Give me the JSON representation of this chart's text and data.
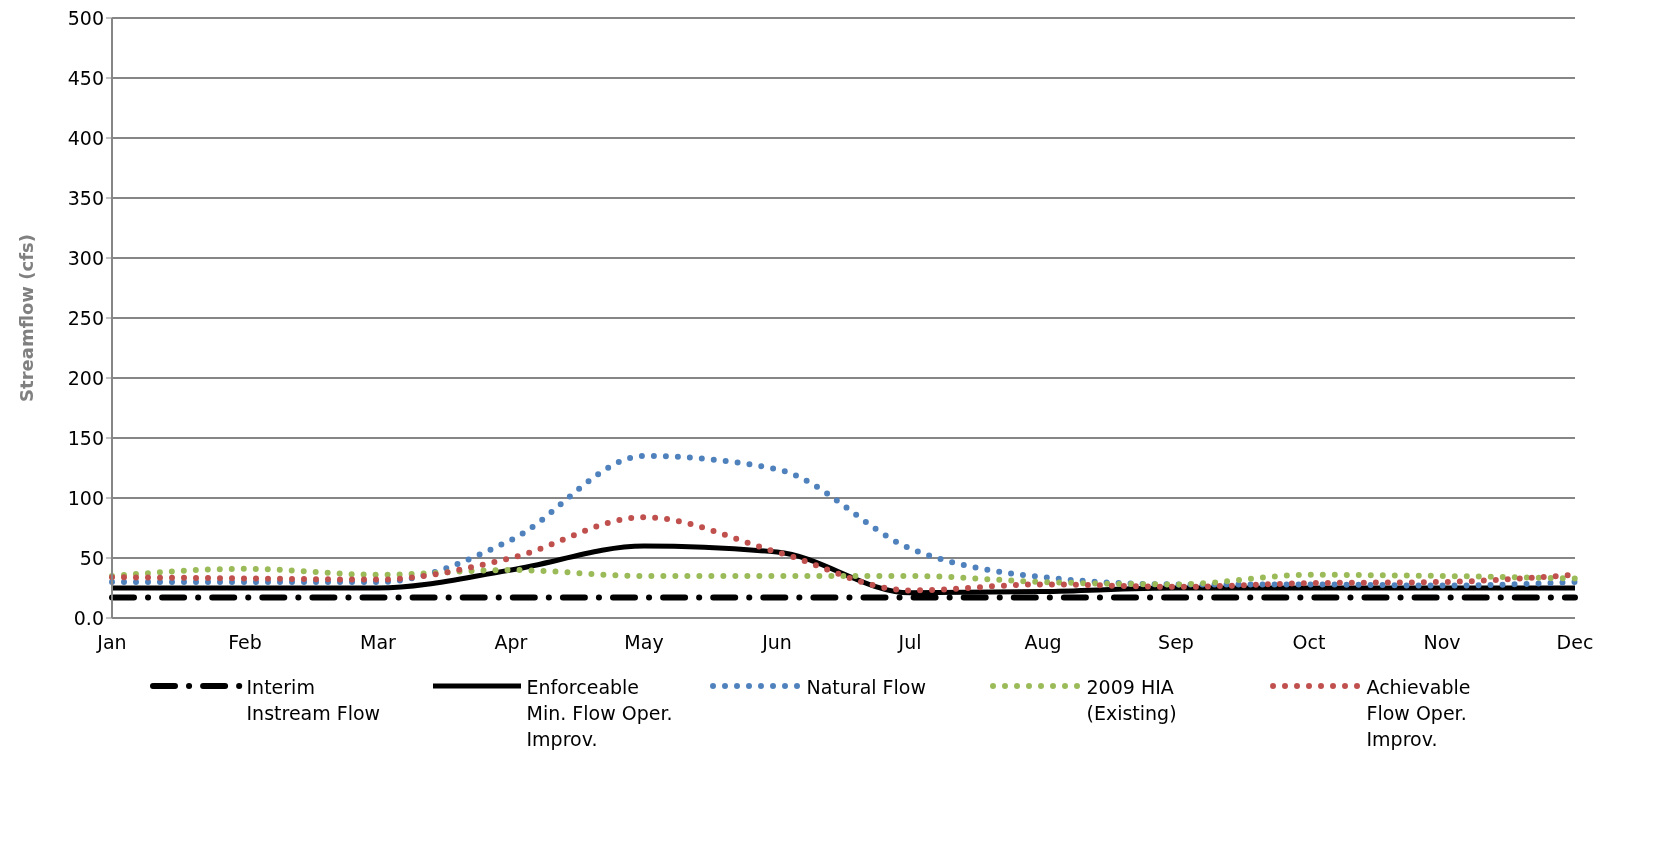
{
  "chart_data": {
    "type": "line",
    "ylabel": "Streamflow (cfs)",
    "categories": [
      "Jan",
      "Feb",
      "Mar",
      "Apr",
      "May",
      "Jun",
      "Jul",
      "Aug",
      "Sep",
      "Oct",
      "Nov",
      "Dec"
    ],
    "ylim": [
      0,
      500
    ],
    "yticks": [
      {
        "value": 0,
        "label": "0.0"
      },
      50,
      100,
      150,
      200,
      250,
      300,
      350,
      400,
      450,
      500
    ],
    "grid": "y",
    "legend": "bottom",
    "marker": "none",
    "series": [
      {
        "name": "Interim Instream Flow",
        "color": "#000000",
        "line_style": "dashed",
        "values": [
          17,
          17,
          17,
          17,
          17,
          17,
          17,
          17,
          17,
          17,
          17,
          17
        ]
      },
      {
        "name": "Enforceable Min. Flow Oper. Improv.",
        "color": "#000000",
        "line_style": "solid",
        "values": [
          25,
          25,
          25,
          40,
          60,
          55,
          21,
          22,
          25,
          25,
          25,
          25
        ]
      },
      {
        "name": "Natural Flow",
        "color": "#4f81bd",
        "line_style": "dotted",
        "values": [
          30,
          30,
          30,
          65,
          135,
          124,
          58,
          34,
          28,
          28,
          27,
          30
        ]
      },
      {
        "name": "2009 HIA (Existing)",
        "color": "#9bbb59",
        "line_style": "dotted",
        "values": [
          35,
          41,
          36,
          40,
          35,
          35,
          35,
          30,
          28,
          36,
          35,
          33
        ]
      },
      {
        "name": "Achievable Flow Oper. Improv.",
        "color": "#c0504d",
        "line_style": "dotted",
        "values": [
          34,
          33,
          32,
          50,
          84,
          55,
          23,
          28,
          26,
          29,
          30,
          36
        ]
      }
    ]
  }
}
